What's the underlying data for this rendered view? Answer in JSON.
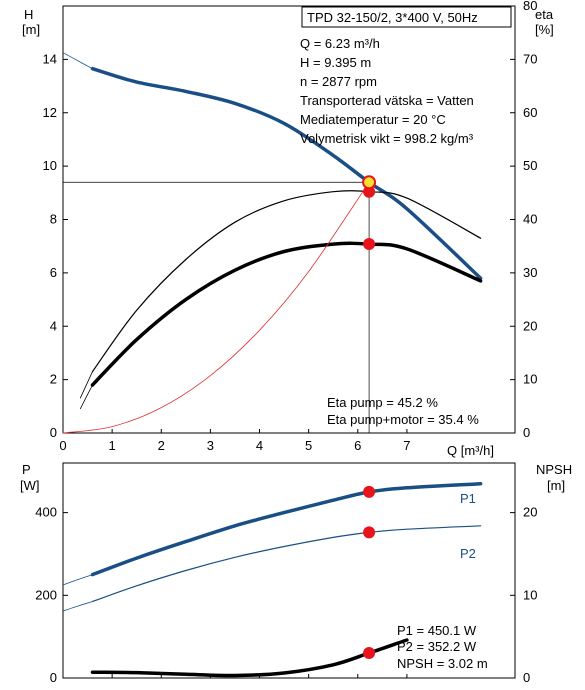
{
  "chart_data": [
    {
      "type": "line",
      "panel": "head-efficiency",
      "y_left": {
        "label_line1": "H",
        "label_line2": "[m]",
        "ticks": [
          0,
          2,
          4,
          6,
          8,
          10,
          12,
          14
        ],
        "range": [
          0,
          16
        ]
      },
      "y_right": {
        "label_line1": "eta",
        "label_line2": "[%]",
        "ticks": [
          0,
          10,
          20,
          30,
          40,
          50,
          60,
          70,
          80
        ],
        "range": [
          0,
          80
        ]
      },
      "x": {
        "label": "Q [m³/h]",
        "ticks": [
          0,
          1,
          2,
          3,
          4,
          5,
          6,
          7
        ],
        "range": [
          0,
          9.2
        ]
      },
      "title_box": "TPD 32-150/2, 3*400 V, 50Hz",
      "info": [
        "Q = 6.23 m³/h",
        "H = 9.395 m",
        "n = 2877 rpm",
        "Transporterad vätska = Vatten",
        "Mediatemperatur = 20 °C",
        "Volymetrisk vikt = 998.2 kg/m³"
      ],
      "eta_info": [
        "Eta pump = 45.2 %",
        "Eta pump+motor = 35.4 %"
      ],
      "series": [
        {
          "role": "head-curve",
          "axis": "left",
          "color": "#1a4f86",
          "x": [
            0.6,
            1.5,
            2.5,
            3.5,
            4.5,
            5.5,
            6.23,
            7.0,
            8.5
          ],
          "y": [
            13.65,
            13.15,
            12.8,
            12.35,
            11.6,
            10.4,
            9.395,
            8.4,
            5.8
          ],
          "ext_x": [
            0,
            0.3,
            0.6
          ],
          "ext_y": [
            14.25,
            13.95,
            13.65
          ]
        },
        {
          "role": "eta-pump",
          "axis": "right",
          "color": "#000000",
          "thick": false,
          "x": [
            0.6,
            1.5,
            2.5,
            3.5,
            4.5,
            5.5,
            6.23,
            7.0,
            8.5
          ],
          "y": [
            11.5,
            23.0,
            32.5,
            39.5,
            43.5,
            45.2,
            45.2,
            44.0,
            36.5
          ],
          "ext_x": [
            0.35,
            0.6
          ],
          "ext_y": [
            6.5,
            11.5
          ]
        },
        {
          "role": "eta-pump-motor",
          "axis": "right",
          "color": "#000000",
          "thick": true,
          "x": [
            0.6,
            1.5,
            2.5,
            3.5,
            4.5,
            5.5,
            6.23,
            7.0,
            8.5
          ],
          "y": [
            9.0,
            17.5,
            25.0,
            30.5,
            34.0,
            35.4,
            35.4,
            34.5,
            28.5
          ],
          "ext_x": [
            0.35,
            0.6
          ],
          "ext_y": [
            4.5,
            9.0
          ]
        },
        {
          "role": "system-curve",
          "axis": "left",
          "color": "#e03030",
          "x": [
            0,
            1,
            2,
            3,
            4,
            5,
            6.23
          ],
          "y": [
            0,
            0.24,
            0.95,
            2.15,
            3.85,
            6.05,
            9.395
          ]
        }
      ],
      "operating_point": {
        "q": 6.23,
        "h": 9.395,
        "eta_pump": 45.2,
        "eta_pump_motor": 35.4
      }
    },
    {
      "type": "line",
      "panel": "power-npsh",
      "y_left": {
        "label_line1": "P",
        "label_line2": "[W]",
        "ticks": [
          0,
          200,
          400
        ],
        "range": [
          0,
          520
        ]
      },
      "y_right": {
        "label_line1": "NPSH",
        "label_line2": "[m]",
        "ticks": [
          0,
          10,
          20
        ],
        "range": [
          0,
          26
        ]
      },
      "x": {
        "range": [
          0,
          9.2
        ]
      },
      "info": [
        "P1 = 450.1 W",
        "P2 = 352.2 W",
        "NPSH = 3.02 m"
      ],
      "series": [
        {
          "name": "P1",
          "axis": "left",
          "color": "#1a4f86",
          "thick": true,
          "x": [
            0.6,
            1.5,
            2.5,
            3.5,
            4.5,
            5.5,
            6.23,
            7.0,
            8.5
          ],
          "y": [
            250,
            290,
            330,
            368,
            400,
            430,
            450.1,
            460,
            470
          ],
          "ext_x": [
            0,
            0.3,
            0.6
          ],
          "ext_y": [
            225,
            238,
            250
          ]
        },
        {
          "name": "P2",
          "axis": "left",
          "color": "#1a4f86",
          "thick": false,
          "x": [
            0.6,
            1.5,
            2.5,
            3.5,
            4.5,
            5.5,
            6.23,
            7.0,
            8.5
          ],
          "y": [
            185,
            223,
            260,
            292,
            318,
            340,
            352.2,
            360,
            368
          ],
          "ext_x": [
            0,
            0.3,
            0.6
          ],
          "ext_y": [
            162,
            174,
            185
          ]
        },
        {
          "role": "npsh",
          "axis": "right",
          "color": "#000000",
          "thick": true,
          "x": [
            0.6,
            1.5,
            2.5,
            3.5,
            4.5,
            5.5,
            6.23,
            7.0
          ],
          "y": [
            0.7,
            0.65,
            0.45,
            0.3,
            0.6,
            1.6,
            3.02,
            4.6
          ]
        }
      ],
      "operating_point": {
        "q": 6.23,
        "p1": 450.1,
        "p2": 352.2,
        "npsh": 3.02
      }
    }
  ]
}
